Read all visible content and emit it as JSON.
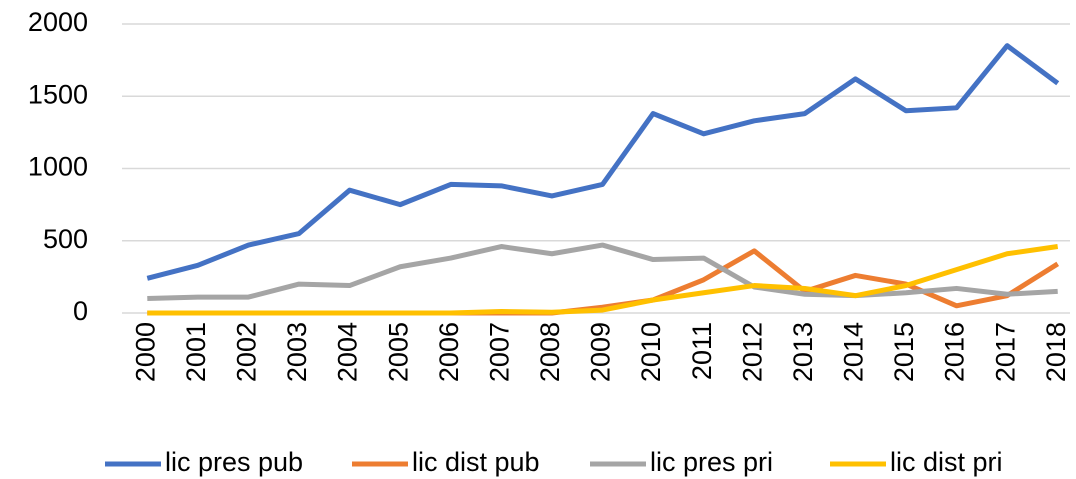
{
  "chart_data": {
    "type": "line",
    "x": [
      "2000",
      "2001",
      "2002",
      "2003",
      "2004",
      "2005",
      "2006",
      "2007",
      "2008",
      "2009",
      "2010",
      "2011",
      "2012",
      "2013",
      "2014",
      "2015",
      "2016",
      "2017",
      "2018"
    ],
    "series": [
      {
        "name": "lic pres pub",
        "color": "#4472c4",
        "values": [
          240,
          330,
          470,
          550,
          850,
          750,
          890,
          880,
          810,
          890,
          1380,
          1240,
          1330,
          1380,
          1620,
          1400,
          1420,
          1850,
          1590
        ]
      },
      {
        "name": "lic dist pub",
        "color": "#ed7d31",
        "values": [
          0,
          0,
          0,
          0,
          0,
          0,
          0,
          0,
          0,
          40,
          90,
          230,
          430,
          150,
          260,
          200,
          50,
          120,
          340
        ]
      },
      {
        "name": "lic pres pri",
        "color": "#a5a5a5",
        "values": [
          100,
          110,
          110,
          200,
          190,
          320,
          380,
          460,
          410,
          470,
          370,
          380,
          180,
          130,
          120,
          140,
          170,
          130,
          150
        ]
      },
      {
        "name": "lic dist pri",
        "color": "#ffc000",
        "values": [
          0,
          0,
          0,
          0,
          0,
          0,
          0,
          10,
          5,
          20,
          90,
          140,
          190,
          170,
          120,
          190,
          300,
          410,
          460
        ]
      }
    ],
    "ylim": [
      0,
      2000
    ],
    "yticks": [
      0,
      500,
      1000,
      1500,
      2000
    ],
    "grid": true,
    "legend": "bottom"
  }
}
